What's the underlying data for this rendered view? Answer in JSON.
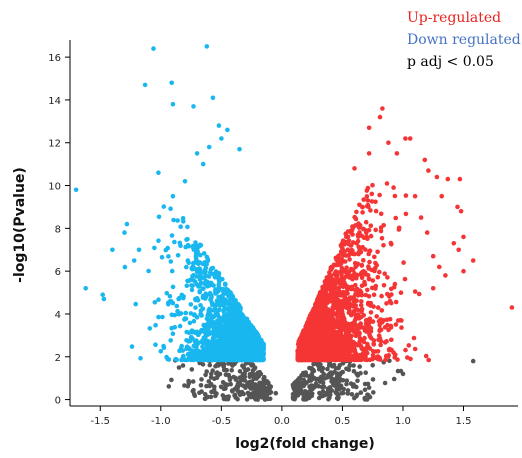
{
  "chart_data": {
    "type": "scatter",
    "title": "",
    "xlabel": "log2(fold change)",
    "ylabel": "-log10(Pvalue)",
    "xlim": [
      -1.75,
      1.95
    ],
    "ylim": [
      -0.3,
      16.8
    ],
    "x_ticks": [
      -1.5,
      -1.0,
      -0.5,
      0.0,
      0.5,
      1.0,
      1.5
    ],
    "x_tick_labels": [
      "-1.5",
      "-1.0",
      "-0.5",
      "0.0",
      "0.5",
      "1.0",
      "1.5"
    ],
    "y_ticks": [
      0,
      2,
      4,
      6,
      8,
      10,
      12,
      14,
      16
    ],
    "y_tick_labels": [
      "0",
      "2",
      "4",
      "6",
      "8",
      "10",
      "12",
      "14",
      "16"
    ],
    "grid": false,
    "legend_position": "top-right",
    "legend": [
      {
        "label": "Up-regulated",
        "color": "#e8231f"
      },
      {
        "label": "Down regulated.",
        "color": "#4472c4"
      },
      {
        "label": "p adj < 0.05",
        "color": "#000000"
      }
    ],
    "series": [
      {
        "key": "up",
        "color": "#f53535",
        "points": [
          [
            0.83,
            13.6
          ],
          [
            0.81,
            13.2
          ],
          [
            1.02,
            12.2
          ],
          [
            1.06,
            12.2
          ],
          [
            1.18,
            11.2
          ],
          [
            1.21,
            10.7
          ],
          [
            1.28,
            10.4
          ],
          [
            1.47,
            10.3
          ],
          [
            1.37,
            10.3
          ],
          [
            1.32,
            9.5
          ],
          [
            1.45,
            9.0
          ],
          [
            1.48,
            8.8
          ],
          [
            1.5,
            7.6
          ],
          [
            1.42,
            7.3
          ],
          [
            1.46,
            7.0
          ],
          [
            1.58,
            6.5
          ],
          [
            1.5,
            6.0
          ],
          [
            1.9,
            4.3
          ],
          [
            1.25,
            5.2
          ],
          [
            0.72,
            12.7
          ],
          [
            0.88,
            12.0
          ],
          [
            0.95,
            11.5
          ],
          [
            0.6,
            10.8
          ],
          [
            0.72,
            11.5
          ],
          [
            1.1,
            9.5
          ],
          [
            1.15,
            8.5
          ],
          [
            1.2,
            7.8
          ],
          [
            1.25,
            6.7
          ],
          [
            1.3,
            6.2
          ],
          [
            1.35,
            5.8
          ]
        ]
      },
      {
        "key": "down",
        "color": "#19b7ef",
        "points": [
          [
            -0.62,
            16.5
          ],
          [
            -1.06,
            16.4
          ],
          [
            -0.91,
            14.8
          ],
          [
            -1.13,
            14.7
          ],
          [
            -0.9,
            13.8
          ],
          [
            -0.73,
            13.7
          ],
          [
            -0.57,
            14.1
          ],
          [
            -0.45,
            12.6
          ],
          [
            -0.52,
            12.8
          ],
          [
            -0.5,
            12.2
          ],
          [
            -0.6,
            11.8
          ],
          [
            -0.7,
            11.5
          ],
          [
            -0.65,
            11.0
          ],
          [
            -1.02,
            10.6
          ],
          [
            -1.7,
            9.8
          ],
          [
            -1.28,
            8.2
          ],
          [
            -1.3,
            7.8
          ],
          [
            -1.4,
            7.0
          ],
          [
            -1.62,
            5.2
          ],
          [
            -1.47,
            4.7
          ],
          [
            -1.48,
            4.9
          ],
          [
            -0.35,
            11.7
          ],
          [
            -0.8,
            10.2
          ],
          [
            -0.9,
            9.5
          ],
          [
            -1.18,
            7.0
          ],
          [
            -1.22,
            6.5
          ]
        ]
      },
      {
        "key": "ns",
        "color": "#555555",
        "points": [
          [
            1.58,
            1.8
          ],
          [
            1.0,
            1.2
          ],
          [
            0.75,
            1.6
          ],
          [
            0.45,
            0.3
          ],
          [
            -0.05,
            0.3
          ],
          [
            -0.85,
            1.5
          ],
          [
            0.2,
            0.1
          ],
          [
            -0.2,
            0.0
          ]
        ]
      }
    ]
  }
}
